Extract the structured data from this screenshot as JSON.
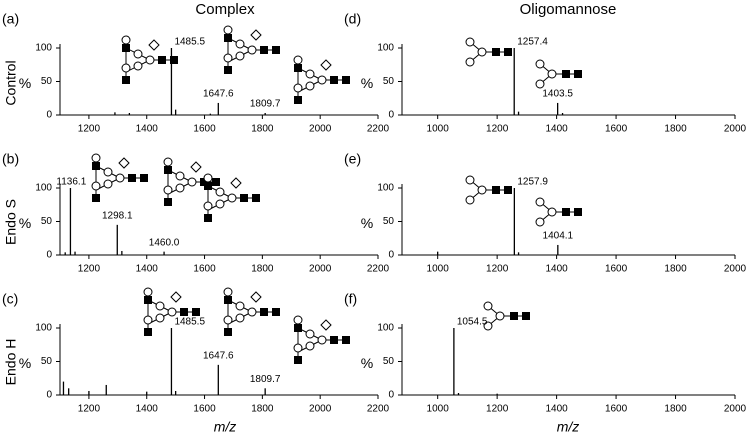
{
  "columns": [
    "Complex",
    "Oligomannose"
  ],
  "rows": [
    "Control",
    "Endo S",
    "Endo H"
  ],
  "chart_data": [
    {
      "type": "spectrum",
      "panel": "(a)",
      "ylabel": "%",
      "xlim": [
        1100,
        2200
      ],
      "xticks": [
        1200,
        1400,
        1600,
        1800,
        2000,
        2200
      ],
      "ylim": [
        0,
        100
      ],
      "yticks": [
        0,
        50,
        100
      ],
      "x": [
        1485.5,
        1647.6,
        1809.7
      ],
      "x_labels": [
        "1485.5",
        "1647.6",
        "1809.7"
      ],
      "values": [
        100,
        18,
        3
      ],
      "minor_x": [
        1290,
        1340,
        1500,
        1620
      ],
      "minor_values": [
        4,
        3,
        8,
        2
      ]
    },
    {
      "type": "spectrum",
      "panel": "(d)",
      "ylabel": "%",
      "xlim": [
        880,
        2000
      ],
      "xticks": [
        1000,
        1200,
        1400,
        1600,
        1800,
        2000
      ],
      "ylim": [
        0,
        100
      ],
      "yticks": [
        0,
        50,
        100
      ],
      "x": [
        1257.4,
        1403.5
      ],
      "x_labels": [
        "1257.4",
        "1403.5"
      ],
      "values": [
        100,
        18
      ],
      "minor_x": [
        1272,
        1420
      ],
      "minor_values": [
        5,
        3
      ]
    },
    {
      "type": "spectrum",
      "panel": "(b)",
      "ylabel": "%",
      "xlim": [
        1100,
        2200
      ],
      "xticks": [
        1200,
        1400,
        1600,
        1800,
        2000,
        2200
      ],
      "ylim": [
        0,
        100
      ],
      "yticks": [
        0,
        50,
        100
      ],
      "x": [
        1136.1,
        1298.1,
        1460.0
      ],
      "x_labels": [
        "1136.1",
        "1298.1",
        "1460.0"
      ],
      "values": [
        100,
        45,
        5
      ],
      "minor_x": [
        1118,
        1152,
        1314
      ],
      "minor_values": [
        4,
        5,
        6
      ]
    },
    {
      "type": "spectrum",
      "panel": "(e)",
      "ylabel": "%",
      "xlim": [
        880,
        2000
      ],
      "xticks": [
        1000,
        1200,
        1400,
        1600,
        1800,
        2000
      ],
      "ylim": [
        0,
        100
      ],
      "yticks": [
        0,
        50,
        100
      ],
      "x": [
        1257.9,
        1404.1
      ],
      "x_labels": [
        "1257.9",
        "1404.1"
      ],
      "values": [
        100,
        15
      ],
      "minor_x": [
        1000,
        1272
      ],
      "minor_values": [
        5,
        4
      ]
    },
    {
      "type": "spectrum",
      "panel": "(c)",
      "ylabel": "%",
      "xlim": [
        1100,
        2200
      ],
      "xticks": [
        1200,
        1400,
        1600,
        1800,
        2000,
        2200
      ],
      "ylim": [
        0,
        100
      ],
      "yticks": [
        0,
        50,
        100
      ],
      "x": [
        1485.5,
        1647.6,
        1809.7
      ],
      "x_labels": [
        "1485.5",
        "1647.6",
        "1809.7"
      ],
      "values": [
        100,
        45,
        10
      ],
      "minor_x": [
        1112,
        1130,
        1200,
        1260,
        1400,
        1500
      ],
      "minor_values": [
        20,
        10,
        6,
        15,
        5,
        6
      ]
    },
    {
      "type": "spectrum",
      "panel": "(f)",
      "ylabel": "%",
      "xlabel": "m/z",
      "xlim": [
        880,
        2000
      ],
      "xticks": [
        1000,
        1200,
        1400,
        1600,
        1800,
        2000
      ],
      "ylim": [
        0,
        100
      ],
      "yticks": [
        0,
        50,
        100
      ],
      "x": [
        1054.5
      ],
      "x_labels": [
        "1054.5"
      ],
      "values": [
        100
      ],
      "minor_x": [
        1070,
        1200
      ],
      "minor_values": [
        3,
        2
      ]
    }
  ],
  "xlabel": "m/z"
}
